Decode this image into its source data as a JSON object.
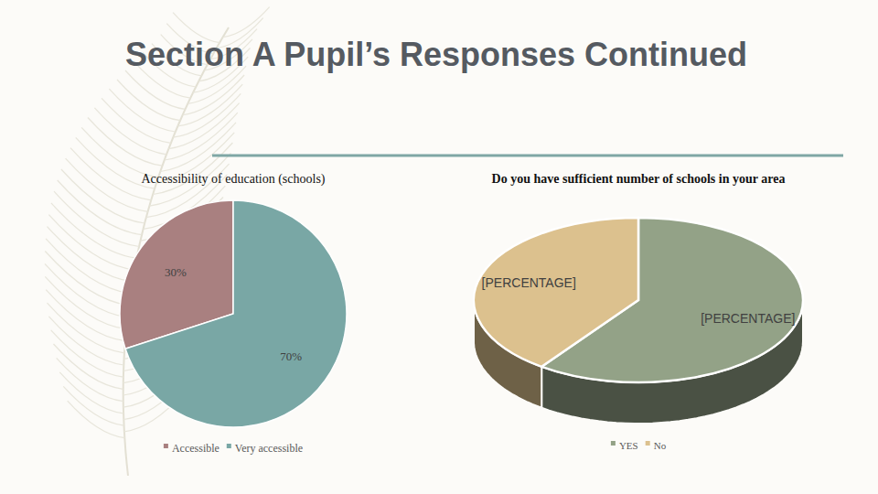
{
  "header": {
    "title": "Section A Pupil’s Responses Continued"
  },
  "chart_data": [
    {
      "type": "pie",
      "title": "Accessibility of education (schools)",
      "categories": [
        "Accessible",
        "Very accessible"
      ],
      "values": [
        30,
        70
      ],
      "value_labels": [
        "30%",
        "70%"
      ],
      "colors": [
        "#a98080",
        "#79a7a5"
      ],
      "data_labels": true,
      "legend": "bottom"
    },
    {
      "type": "pie3d",
      "title": "Do you have sufficient number of schools in your area",
      "categories": [
        "YES",
        "No"
      ],
      "values": [
        60,
        40
      ],
      "value_labels": [
        "[PERCENTAGE]",
        "[PERCENTAGE]"
      ],
      "colors": [
        "#93a287",
        "#dcc18e"
      ],
      "data_labels": true,
      "legend": "bottom"
    }
  ]
}
